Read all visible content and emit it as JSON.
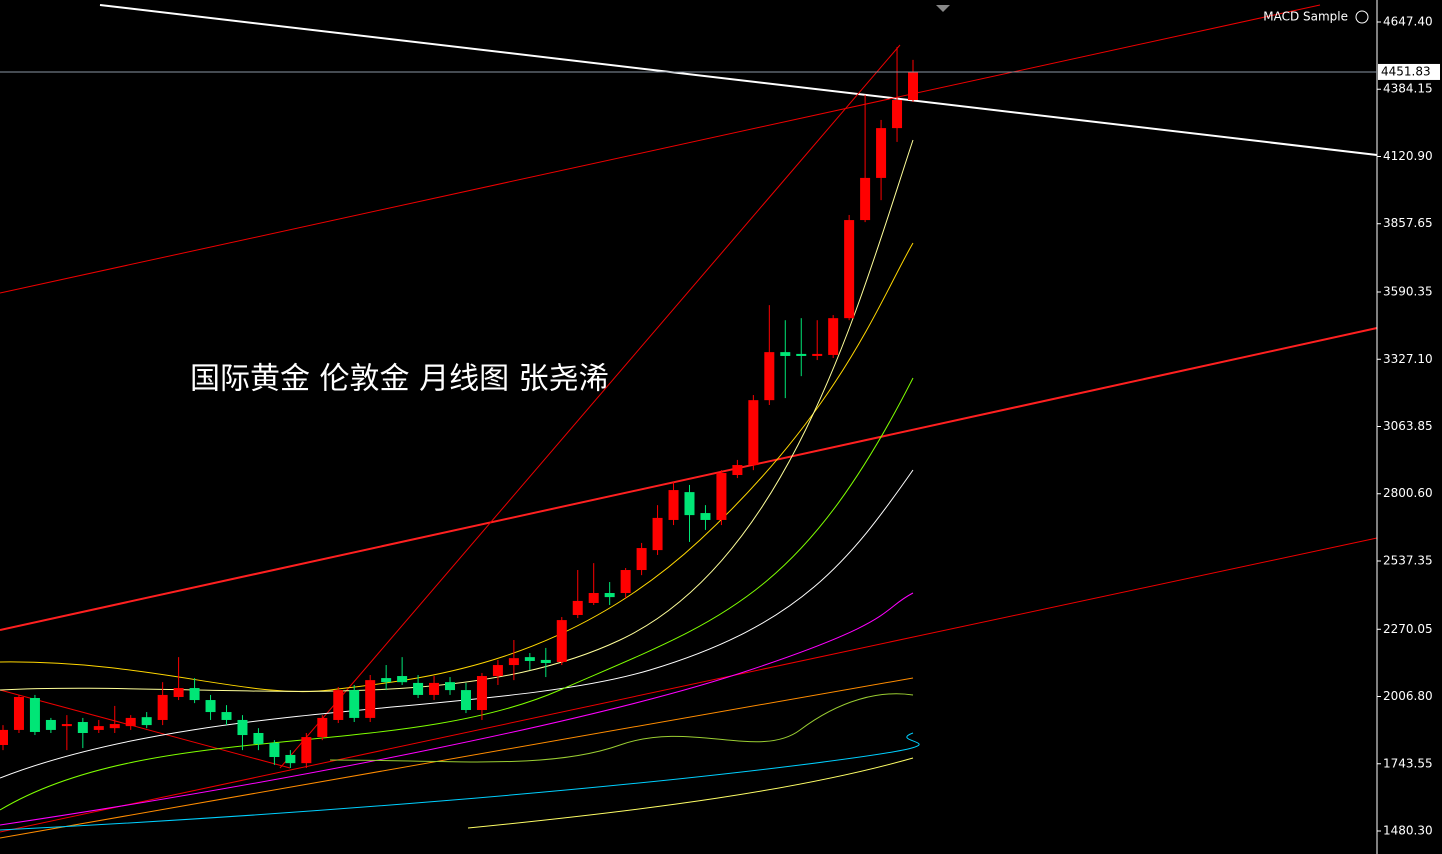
{
  "chart_data": {
    "type": "candlestick",
    "indicator": "MACD Sample",
    "annotation": "国际黄金 伦敦金 月线图 张尧浠",
    "up_color": "#ff0000",
    "down_color": "#00e676",
    "open": [
      1817,
      1876,
      2001,
      1915,
      1891,
      1907,
      1876,
      1883,
      1891,
      1926,
      1915,
      2005,
      2040,
      1993,
      1946,
      1915,
      1864,
      1825,
      1778,
      1746,
      1848,
      1915,
      2032,
      1923,
      2079,
      2087,
      2060,
      2013,
      2063,
      2032,
      1954,
      2087,
      2130,
      2161,
      2150,
      2142,
      2326,
      2373,
      2412,
      2412,
      2502,
      2580,
      2698,
      2807,
      2725,
      2698,
      2874,
      2913,
      3167,
      3355,
      3348,
      3340,
      3344,
      3488,
      3872,
      4037,
      4232,
      4342
    ],
    "high": [
      1895,
      2013,
      2013,
      1923,
      1934,
      1923,
      1915,
      1970,
      1934,
      1946,
      2063,
      2161,
      2079,
      2013,
      1973,
      1934,
      1883,
      1836,
      1797,
      1864,
      1934,
      2044,
      2052,
      2091,
      2130,
      2161,
      2091,
      2087,
      2083,
      2060,
      2099,
      2150,
      2228,
      2177,
      2197,
      2318,
      2502,
      2529,
      2455,
      2510,
      2608,
      2756,
      2846,
      2835,
      2756,
      2893,
      2933,
      3187,
      3539,
      3480,
      3488,
      3480,
      3500,
      3892,
      4362,
      4264,
      4549,
      4499
    ],
    "low": [
      1797,
      1864,
      1856,
      1864,
      1797,
      1805,
      1864,
      1864,
      1876,
      1883,
      1895,
      1993,
      1981,
      1915,
      1895,
      1797,
      1797,
      1739,
      1727,
      1727,
      1836,
      1903,
      1907,
      1907,
      2032,
      2052,
      2001,
      1993,
      2013,
      1942,
      1915,
      2052,
      2071,
      2110,
      2083,
      2130,
      2314,
      2365,
      2365,
      2392,
      2482,
      2561,
      2678,
      2612,
      2659,
      2678,
      2862,
      2893,
      3148,
      3175,
      3261,
      3324,
      3332,
      3480,
      3864,
      3950,
      4178,
      4334
    ],
    "close": [
      1876,
      2005,
      1868,
      1876,
      1899,
      1864,
      1891,
      1899,
      1923,
      1895,
      2013,
      2040,
      1993,
      1946,
      1915,
      1856,
      1821,
      1770,
      1746,
      1848,
      1923,
      2032,
      1923,
      2071,
      2063,
      2063,
      2013,
      2060,
      2032,
      1954,
      2087,
      2130,
      2157,
      2146,
      2138,
      2306,
      2381,
      2412,
      2396,
      2502,
      2588,
      2706,
      2815,
      2717,
      2698,
      2882,
      2913,
      3167,
      3355,
      3340,
      3340,
      3348,
      3488,
      3872,
      4037,
      4232,
      4342,
      4451.83
    ],
    "last_price": {
      "value": 4451.83,
      "label": "4451.83"
    },
    "ylim": [
      1390.3,
      4733.5
    ],
    "yticks": [
      {
        "value": 4647.4,
        "label": "4647.40"
      },
      {
        "value": 4384.15,
        "label": "4384.15"
      },
      {
        "value": 4120.9,
        "label": "4120.90"
      },
      {
        "value": 3857.65,
        "label": "3857.65"
      },
      {
        "value": 3590.35,
        "label": "3590.35"
      },
      {
        "value": 3327.1,
        "label": "3327.10"
      },
      {
        "value": 3063.85,
        "label": "3063.85"
      },
      {
        "value": 2800.6,
        "label": "2800.60"
      },
      {
        "value": 2537.35,
        "label": "2537.35"
      },
      {
        "value": 2270.05,
        "label": "2270.05"
      },
      {
        "value": 2006.8,
        "label": "2006.80"
      },
      {
        "value": 1743.55,
        "label": "1743.55"
      },
      {
        "value": 1480.3,
        "label": "1480.30"
      }
    ]
  }
}
